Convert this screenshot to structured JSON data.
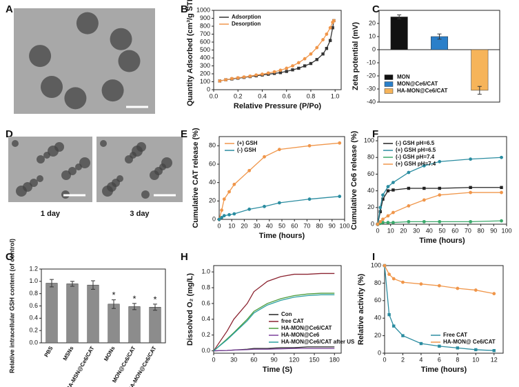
{
  "chart_data": [
    {
      "type": "image",
      "panel": "A"
    },
    {
      "type": "line",
      "panel": "B",
      "xlabel": "Relative Pressure (P/Po)",
      "ylabel": "Quantity Adsorbed (cm³/g STP)",
      "x": [
        0.05,
        0.1,
        0.15,
        0.2,
        0.25,
        0.3,
        0.35,
        0.4,
        0.45,
        0.5,
        0.55,
        0.6,
        0.65,
        0.7,
        0.75,
        0.8,
        0.85,
        0.9,
        0.93,
        0.96,
        0.98,
        0.99
      ],
      "series": [
        {
          "name": "Adsorption",
          "color": "#333333",
          "marker": "square",
          "values": [
            110,
            125,
            135,
            145,
            155,
            165,
            175,
            185,
            195,
            205,
            215,
            230,
            250,
            270,
            300,
            330,
            380,
            450,
            520,
            620,
            780,
            870
          ]
        },
        {
          "name": "Desorption",
          "color": "#f0964a",
          "marker": "circle",
          "values": [
            110,
            125,
            140,
            150,
            160,
            170,
            185,
            195,
            210,
            225,
            245,
            270,
            300,
            340,
            390,
            450,
            530,
            630,
            700,
            780,
            850,
            870
          ]
        }
      ],
      "xlim": [
        0,
        1.05
      ],
      "xticks": [
        {
          "value": 0,
          "label": "0.0"
        },
        0.2,
        0.4,
        0.6,
        0.8,
        {
          "value": 1,
          "label": "1.0"
        }
      ],
      "ylim": [
        0,
        1000
      ],
      "yticks": [
        0,
        100,
        200,
        300,
        400,
        500,
        600,
        700,
        800,
        900,
        1000
      ],
      "legend": "upper left"
    },
    {
      "type": "bar",
      "panel": "C",
      "ylabel": "Zeta potential (mV)",
      "series": [
        {
          "name": "MON",
          "color": "#111111",
          "values": [
            25
          ],
          "errors": [
            1.5
          ]
        },
        {
          "name": "MON@Ce6/CAT",
          "color": "#2a7fc9",
          "values": [
            10
          ],
          "errors": [
            2
          ]
        },
        {
          "name": "HA-MON@Ce6/CAT",
          "color": "#f6b45a",
          "values": [
            -31
          ],
          "errors": [
            3
          ]
        }
      ],
      "ylim": [
        -40,
        30
      ],
      "yticks": [
        -40,
        -30,
        -20,
        -10,
        0,
        10,
        20
      ],
      "legend": "lower left"
    },
    {
      "type": "image",
      "panel": "D",
      "labels": [
        "1 day",
        "3 day"
      ]
    },
    {
      "type": "line",
      "panel": "E",
      "xlabel": "Time (hours)",
      "ylabel": "Cumulative CAT release (%)",
      "x": [
        0,
        2,
        4,
        8,
        12,
        24,
        36,
        48,
        72,
        96
      ],
      "series": [
        {
          "name": "(+) GSH",
          "color": "#f0964a",
          "marker": "circle",
          "values": [
            0,
            10,
            22,
            30,
            38,
            53,
            68,
            76,
            80,
            83
          ]
        },
        {
          "name": "(-) GSH",
          "color": "#2a8ca0",
          "marker": "circle",
          "values": [
            0,
            2,
            4,
            5,
            6,
            11,
            14,
            18,
            22,
            25
          ]
        }
      ],
      "xlim": [
        0,
        100
      ],
      "xticks": [
        0,
        10,
        20,
        30,
        40,
        50,
        60,
        70,
        80,
        90,
        100
      ],
      "ylim": [
        0,
        90
      ],
      "yticks": [
        0,
        20,
        40,
        60,
        80
      ],
      "legend": "upper left"
    },
    {
      "type": "line",
      "panel": "F",
      "xlabel": "Time (hours)",
      "ylabel": "Cumulative Ce6 release (%)",
      "x": [
        0,
        2,
        4,
        8,
        12,
        24,
        36,
        48,
        72,
        96
      ],
      "series": [
        {
          "name": "(-) GSH pH=6.5",
          "color": "#222222",
          "marker": "square",
          "values": [
            0,
            15,
            30,
            40,
            41,
            43,
            43,
            43,
            44,
            44
          ]
        },
        {
          "name": "(+) GSH pH=6.5",
          "color": "#2a8ca0",
          "marker": "circle",
          "values": [
            0,
            20,
            35,
            45,
            50,
            62,
            70,
            75,
            78,
            80
          ]
        },
        {
          "name": "(-) GSH pH=7.4",
          "color": "#3aa86a",
          "marker": "circle",
          "values": [
            0,
            1,
            2,
            2,
            2,
            3,
            3,
            3,
            3,
            4
          ]
        },
        {
          "name": "(+) GSH pH=7.4",
          "color": "#f0964a",
          "marker": "circle",
          "values": [
            0,
            3,
            6,
            10,
            14,
            22,
            29,
            35,
            38,
            38
          ]
        }
      ],
      "xlim": [
        0,
        100
      ],
      "xticks": [
        0,
        10,
        20,
        30,
        40,
        50,
        60,
        70,
        80,
        90,
        100
      ],
      "ylim": [
        0,
        105
      ],
      "yticks": [
        0,
        20,
        40,
        60,
        80,
        100
      ],
      "legend": "upper left"
    },
    {
      "type": "bar",
      "panel": "G",
      "ylabel": "Relative intracellular GSH content (of control)",
      "categories": [
        "PBS",
        "MSNs",
        "HA-MSN@Ce6/CAT",
        "MONs",
        "MON@Ce6/CAT",
        "HA-MON@Ce6/CAT"
      ],
      "values": [
        0.97,
        0.96,
        0.94,
        0.63,
        0.59,
        0.58
      ],
      "errors": [
        0.06,
        0.04,
        0.07,
        0.07,
        0.05,
        0.05
      ],
      "significance": [
        null,
        null,
        null,
        "*",
        "*",
        "*"
      ],
      "color": "#8c8c8c",
      "ylim": [
        0,
        1.2
      ],
      "yticks": [
        {
          "value": 0,
          "label": "0.0"
        },
        0.2,
        0.4,
        0.6,
        0.8,
        {
          "value": 1,
          "label": "1.0"
        },
        1.2
      ]
    },
    {
      "type": "line",
      "panel": "H",
      "xlabel": "Time (S)",
      "ylabel": "Dissolved O₂ (mg/L)",
      "x": [
        0,
        20,
        30,
        50,
        60,
        80,
        100,
        120,
        140,
        160,
        180
      ],
      "series": [
        {
          "name": "Con",
          "color": "#222222",
          "marker": "none",
          "values": [
            0,
            0.005,
            0.01,
            0.02,
            0.03,
            0.03,
            0.04,
            0.04,
            0.05,
            0.05,
            0.05
          ]
        },
        {
          "name": "free CAT",
          "color": "#8b2330",
          "marker": "none",
          "values": [
            0,
            0.25,
            0.4,
            0.6,
            0.75,
            0.88,
            0.94,
            0.97,
            0.97,
            0.98,
            0.98
          ]
        },
        {
          "name": "HA-MON@Ce6/CAT",
          "color": "#4a9a3a",
          "marker": "none",
          "values": [
            0,
            0.15,
            0.23,
            0.4,
            0.5,
            0.6,
            0.66,
            0.7,
            0.72,
            0.73,
            0.73
          ]
        },
        {
          "name": "HA-MON@Ce6",
          "color": "#7a3f9a",
          "marker": "none",
          "values": [
            0,
            0.005,
            0.01,
            0.015,
            0.02,
            0.02,
            0.025,
            0.03,
            0.03,
            0.03,
            0.03
          ]
        },
        {
          "name": "HA-MON@Ce6/CAT after US",
          "color": "#2aa0a0",
          "marker": "none",
          "values": [
            0,
            0.14,
            0.22,
            0.38,
            0.48,
            0.58,
            0.64,
            0.68,
            0.7,
            0.71,
            0.71
          ]
        }
      ],
      "xlim": [
        0,
        190
      ],
      "xticks": [
        0,
        30,
        60,
        90,
        120,
        150,
        180
      ],
      "ylim": [
        -0.03,
        1.08
      ],
      "yticks": [
        {
          "value": 0,
          "label": "0.0"
        },
        0.2,
        0.4,
        0.6,
        0.8,
        {
          "value": 1,
          "label": "1.0"
        }
      ],
      "legend": "lower right"
    },
    {
      "type": "line",
      "panel": "I",
      "xlabel": "Time (hours)",
      "ylabel": "Relative activity (%)",
      "x": [
        0,
        0.5,
        1,
        2,
        4,
        6,
        8,
        10,
        12
      ],
      "series": [
        {
          "name": "Free CAT",
          "color": "#2a8ca0",
          "marker": "square",
          "values": [
            100,
            44,
            31,
            20,
            11,
            8,
            6,
            4,
            3
          ]
        },
        {
          "name": "HA-MON@ Ce6/CAT",
          "color": "#f0964a",
          "marker": "circle",
          "values": [
            100,
            90,
            85,
            81,
            79,
            77,
            74,
            72,
            68
          ]
        }
      ],
      "xlim": [
        0,
        13
      ],
      "xticks": [
        0,
        2,
        4,
        6,
        8,
        10,
        12
      ],
      "ylim": [
        0,
        100
      ],
      "yticks": [
        0,
        20,
        40,
        60,
        80,
        100
      ],
      "legend": "lower right"
    }
  ]
}
